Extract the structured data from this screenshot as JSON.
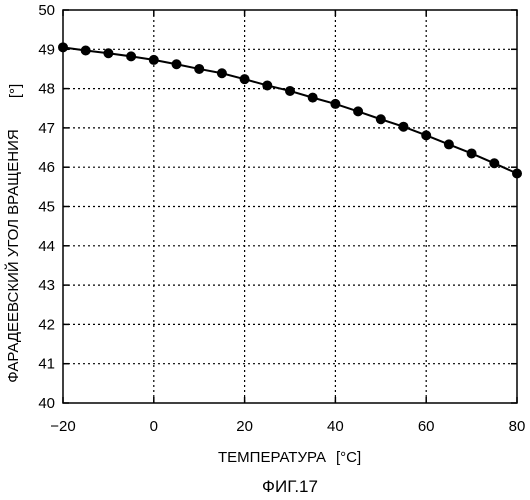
{
  "figure_caption": "ФИГ.17",
  "chart_data": {
    "type": "line",
    "xlabel": "ТЕМПЕРАТУРА",
    "xunit": "[°C]",
    "ylabel": "ФАРАДЕЕВСКИЙ УГОЛ ВРАЩЕНИЯ",
    "yunit": "[°]",
    "xlim": [
      -20,
      80
    ],
    "ylim": [
      40,
      50
    ],
    "xticks": [
      -20,
      0,
      20,
      40,
      60,
      80
    ],
    "xtick_labels": [
      "−20",
      "0",
      "20",
      "40",
      "60",
      "80"
    ],
    "yticks": [
      40,
      41,
      42,
      43,
      44,
      45,
      46,
      47,
      48,
      49,
      50
    ],
    "yticks_labels": [
      "40",
      "41",
      "42",
      "43",
      "44",
      "45",
      "46",
      "47",
      "48",
      "49",
      "50"
    ],
    "grid": true,
    "line_color": "#000000",
    "series": [
      {
        "x": [
          -20,
          -15,
          -10,
          -5,
          0,
          5,
          10,
          15,
          20,
          25,
          30,
          35,
          40,
          45,
          50,
          55,
          60,
          65,
          70,
          75,
          80
        ],
        "y": [
          49.05,
          48.97,
          48.9,
          48.82,
          48.73,
          48.62,
          48.5,
          48.39,
          48.24,
          48.08,
          47.94,
          47.77,
          47.61,
          47.42,
          47.22,
          47.03,
          46.81,
          46.58,
          46.35,
          46.1,
          45.84
        ]
      }
    ]
  }
}
